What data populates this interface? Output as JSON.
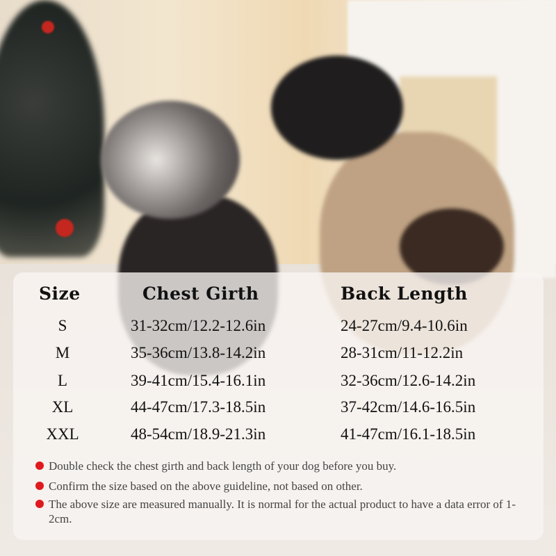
{
  "size_chart": {
    "headers": [
      "Size",
      "Chest Girth",
      "Back Length"
    ],
    "rows": [
      {
        "size": "S",
        "chest": "31-32cm/12.2-12.6in",
        "back": "24-27cm/9.4-10.6in"
      },
      {
        "size": "M",
        "chest": "35-36cm/13.8-14.2in",
        "back": "28-31cm/11-12.2in"
      },
      {
        "size": "L",
        "chest": "39-41cm/15.4-16.1in",
        "back": "32-36cm/12.6-14.2in"
      },
      {
        "size": "XL",
        "chest": "44-47cm/17.3-18.5in",
        "back": "37-42cm/14.6-16.5in"
      },
      {
        "size": "XXL",
        "chest": "48-54cm/18.9-21.3in",
        "back": "41-47cm/16.1-18.5in"
      }
    ]
  },
  "notes": [
    "Double check the chest girth and back length of your dog before you buy.",
    "Confirm the size based on the above guideline, not based on other.",
    "The above size are measured manually. It is normal for the actual product to have a data error of 1-2cm."
  ],
  "colors": {
    "bullet": "#e0191e",
    "text": "#111111"
  }
}
